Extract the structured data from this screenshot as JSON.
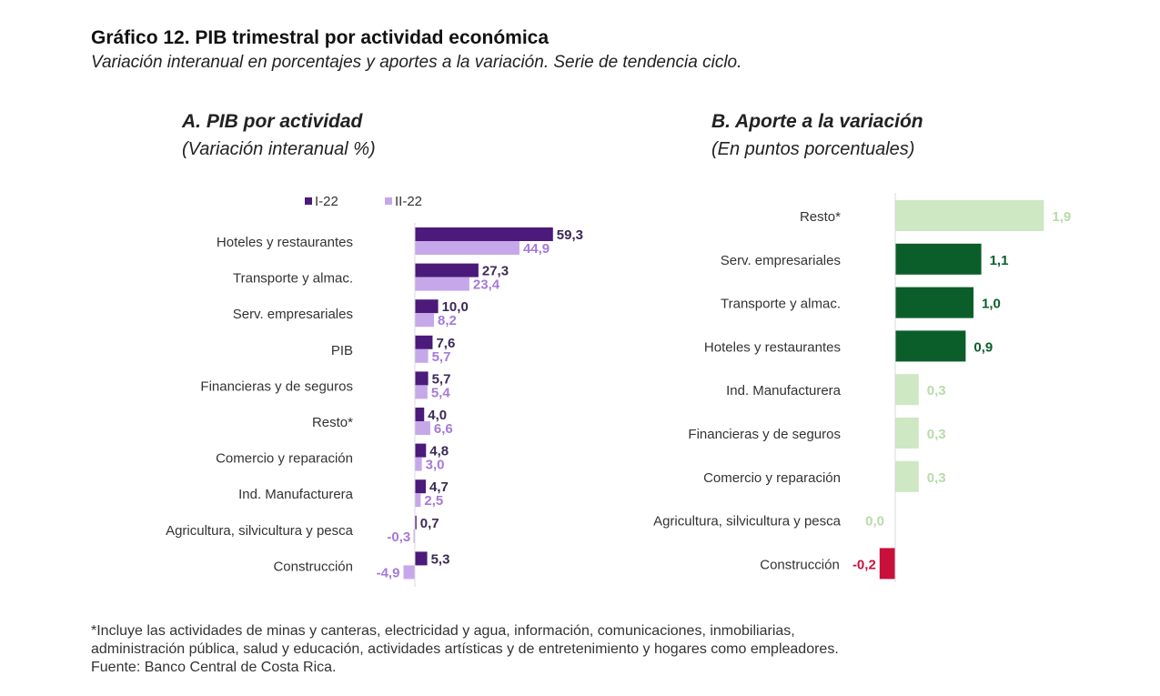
{
  "header": {
    "title": "Gráfico 12. PIB trimestral por actividad económica",
    "subtitle": "Variación interanual en porcentajes y aportes a la variación. Serie de tendencia ciclo."
  },
  "colors": {
    "series_1": "#4b1a7a",
    "series_2": "#c6a8ea",
    "label_2": "#a57ad6",
    "dark_green": "#0b5e2a",
    "light_green": "#cde8c3",
    "light_green_label": "#b7dcaa",
    "negative": "#c8103a"
  },
  "chart_data": [
    {
      "type": "bar",
      "orientation": "horizontal",
      "title": "A. PIB por actividad",
      "subtitle": "(Variación interanual %)",
      "legend": [
        "I-22",
        "II-22"
      ],
      "legend_position": "top",
      "categories": [
        "Hoteles y restaurantes",
        "Transporte y almac.",
        "Serv. empresariales",
        "PIB",
        "Financieras y de seguros",
        "Resto*",
        "Comercio y reparación",
        "Ind. Manufacturera",
        "Agricultura, silvicultura y pesca",
        "Construcción"
      ],
      "series": [
        {
          "name": "I-22",
          "values": [
            59.3,
            27.3,
            10.0,
            7.6,
            5.7,
            4.0,
            4.8,
            4.7,
            0.7,
            5.3
          ],
          "labels": [
            "59,3",
            "27,3",
            "10,0",
            "7,6",
            "5,7",
            "4,0",
            "4,8",
            "4,7",
            "0,7",
            "5,3"
          ]
        },
        {
          "name": "II-22",
          "values": [
            44.9,
            23.4,
            8.2,
            5.7,
            5.4,
            6.6,
            3.0,
            2.5,
            -0.3,
            -4.9
          ],
          "labels": [
            "44,9",
            "23,4",
            "8,2",
            "5,7",
            "5,4",
            "6,6",
            "3,0",
            "2,5",
            "-0,3",
            "-4,9"
          ]
        }
      ],
      "xlabel": "",
      "ylabel": "",
      "grid": false
    },
    {
      "type": "bar",
      "orientation": "horizontal",
      "title": "B. Aporte a la variación",
      "subtitle": "(En puntos porcentuales)",
      "categories": [
        "Resto*",
        "Serv. empresariales",
        "Transporte y almac.",
        "Hoteles y restaurantes",
        "Ind. Manufacturera",
        "Financieras y de seguros",
        "Comercio y reparación",
        "Agricultura, silvicultura y pesca",
        "Construcción"
      ],
      "values": [
        1.9,
        1.1,
        1.0,
        0.9,
        0.3,
        0.3,
        0.3,
        0.0,
        -0.2
      ],
      "labels": [
        "1,9",
        "1,1",
        "1,0",
        "0,9",
        "0,3",
        "0,3",
        "0,3",
        "0,0",
        "-0,2"
      ],
      "highlight": [
        false,
        true,
        true,
        true,
        false,
        false,
        false,
        false,
        false
      ],
      "xlabel": "",
      "ylabel": "",
      "grid": false
    }
  ],
  "footnote": {
    "line1": "*Incluye las actividades de minas y canteras, electricidad y agua, información, comunicaciones, inmobiliarias,",
    "line2": "administración pública, salud y educación, actividades artísticas y de entretenimiento y hogares como empleadores.",
    "source": "Fuente: Banco Central de Costa Rica."
  }
}
